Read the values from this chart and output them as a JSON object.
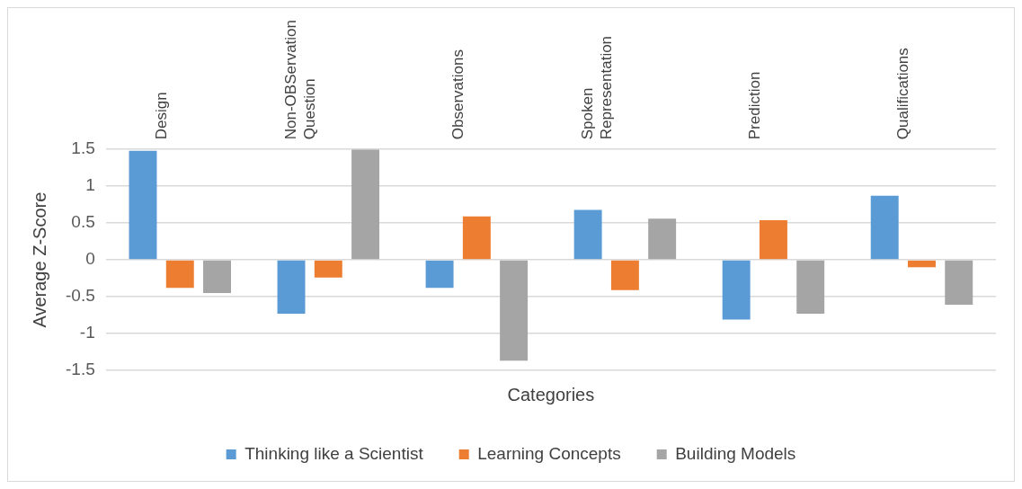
{
  "chart_data": {
    "type": "bar",
    "xlabel": "Categories",
    "ylabel": "Average Z-Score",
    "categories": [
      "Design",
      "Non-OBServation Question",
      "Observations",
      "Spoken Representation",
      "Prediction",
      "Qualifications"
    ],
    "series": [
      {
        "name": "Thinking like a Scientist",
        "color": "#5b9bd5",
        "values": [
          1.48,
          -0.73,
          -0.38,
          0.68,
          -0.81,
          0.87
        ]
      },
      {
        "name": "Learning Concepts",
        "color": "#ed7d31",
        "values": [
          -0.38,
          -0.24,
          0.59,
          -0.41,
          0.54,
          -0.1
        ]
      },
      {
        "name": "Building Models",
        "color": "#a5a5a5",
        "values": [
          -0.45,
          1.5,
          -1.37,
          0.56,
          -0.73,
          -0.61
        ]
      }
    ],
    "ylim": [
      -1.5,
      1.5
    ],
    "yticks": [
      -1.5,
      -1,
      -0.5,
      0,
      0.5,
      1,
      1.5
    ],
    "grid": "y",
    "legend": "bottom"
  }
}
